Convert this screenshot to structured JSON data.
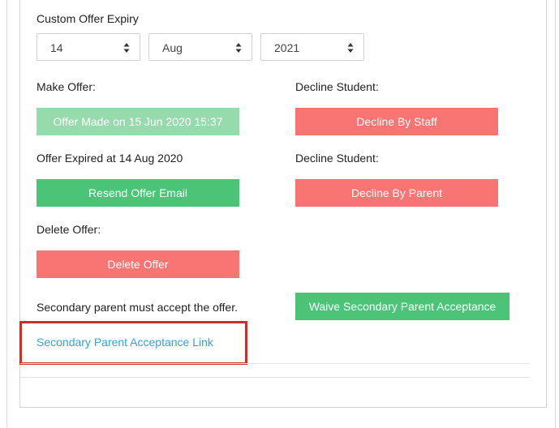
{
  "expiry": {
    "label": "Custom Offer Expiry",
    "day": "14",
    "month": "Aug",
    "year": "2021"
  },
  "make_offer": {
    "label": "Make Offer:",
    "button_label": "Offer Made on 15 Jun 2020 15:37"
  },
  "decline_staff": {
    "label": "Decline Student:",
    "button_label": "Decline By Staff"
  },
  "offer_expired": {
    "label": "Offer Expired at 14 Aug 2020",
    "button_label": "Resend Offer Email"
  },
  "decline_parent": {
    "label": "Decline Student:",
    "button_label": "Decline By Parent"
  },
  "delete_offer": {
    "label": "Delete Offer:",
    "button_label": "Delete Offer"
  },
  "secondary": {
    "notice": "Secondary parent must accept the offer.",
    "waive_label": "Waive Secondary Parent Acceptance",
    "link_label": "Secondary Parent Acceptance Link"
  },
  "colors": {
    "green": "#4cc477",
    "green_disabled": "#97dbad",
    "red": "#f87573",
    "link": "#2fa7d8",
    "highlight": "#c8302b"
  },
  "icons": {
    "select_arrows": "sort-arrows-icon"
  }
}
